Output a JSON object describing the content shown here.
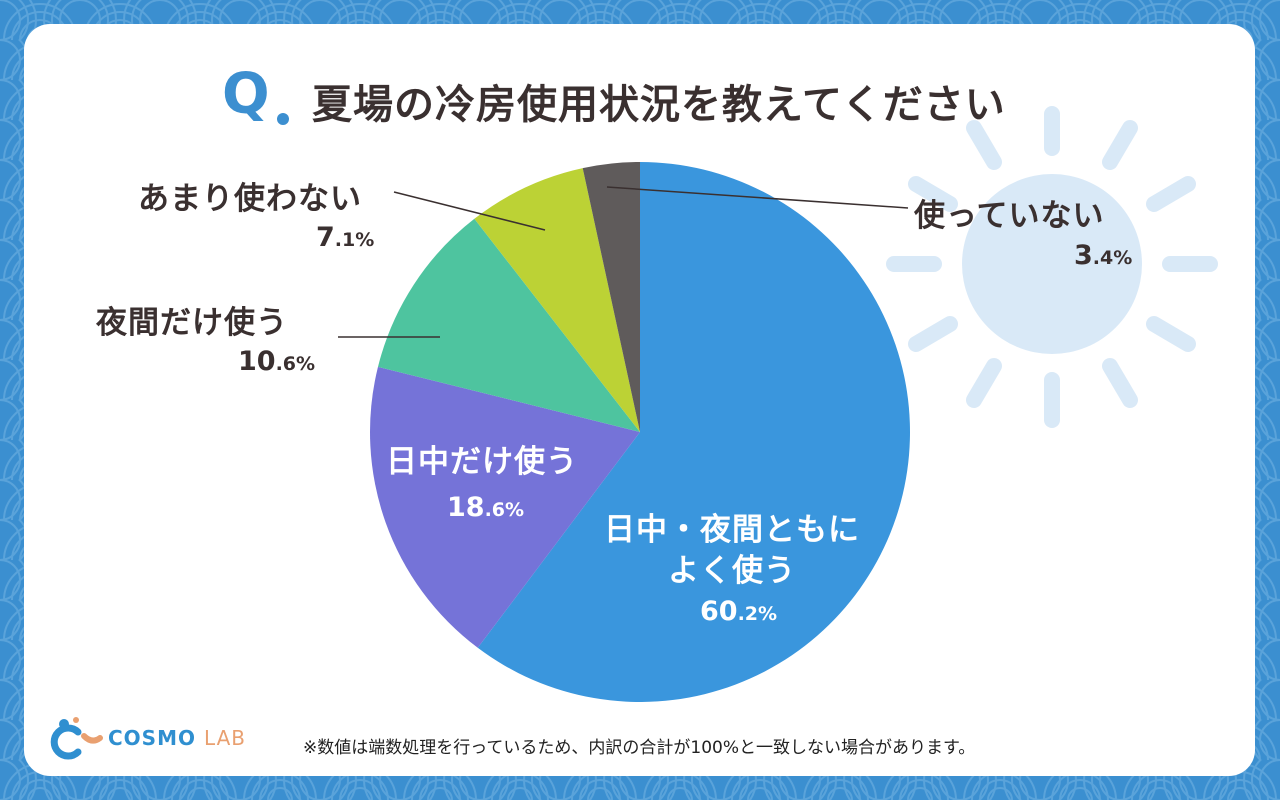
{
  "title": {
    "q_mark": "Q",
    "text": "夏場の冷房使用状況を教えてください"
  },
  "colors": {
    "background": "#3b8fd0",
    "accent": "#3c8fd0",
    "sun": "#d9e9f7"
  },
  "chart_data": {
    "type": "pie",
    "title": "夏場の冷房使用状況を教えてください",
    "slices": [
      {
        "name": "日中・夜間ともに よく使う",
        "name_lines": [
          "日中・夜間ともに",
          "よく使う"
        ],
        "value": 60.2,
        "pct_int": "60",
        "pct_dec": ".2%",
        "color": "#3a96dd"
      },
      {
        "name": "日中だけ使う",
        "name_lines": [
          "日中だけ使う"
        ],
        "value": 18.6,
        "pct_int": "18",
        "pct_dec": ".6%",
        "color": "#7573d8"
      },
      {
        "name": "夜間だけ使う",
        "name_lines": [
          "夜間だけ使う"
        ],
        "value": 10.6,
        "pct_int": "10",
        "pct_dec": ".6%",
        "color": "#4ec49f"
      },
      {
        "name": "あまり使わない",
        "name_lines": [
          "あまり使わない"
        ],
        "value": 7.1,
        "pct_int": "7",
        "pct_dec": ".1%",
        "color": "#bcd235"
      },
      {
        "name": "使っていない",
        "name_lines": [
          "使っていない"
        ],
        "value": 3.4,
        "pct_int": "3",
        "pct_dec": ".4%",
        "color": "#5f5b5b"
      }
    ],
    "start": "12 o'clock",
    "direction": "clockwise"
  },
  "footnote": "※数値は端数処理を行っているため、内訳の合計が100%と一致しない場合があります。",
  "logo": {
    "cosmo": "COSMO",
    "lab": "LAB"
  }
}
